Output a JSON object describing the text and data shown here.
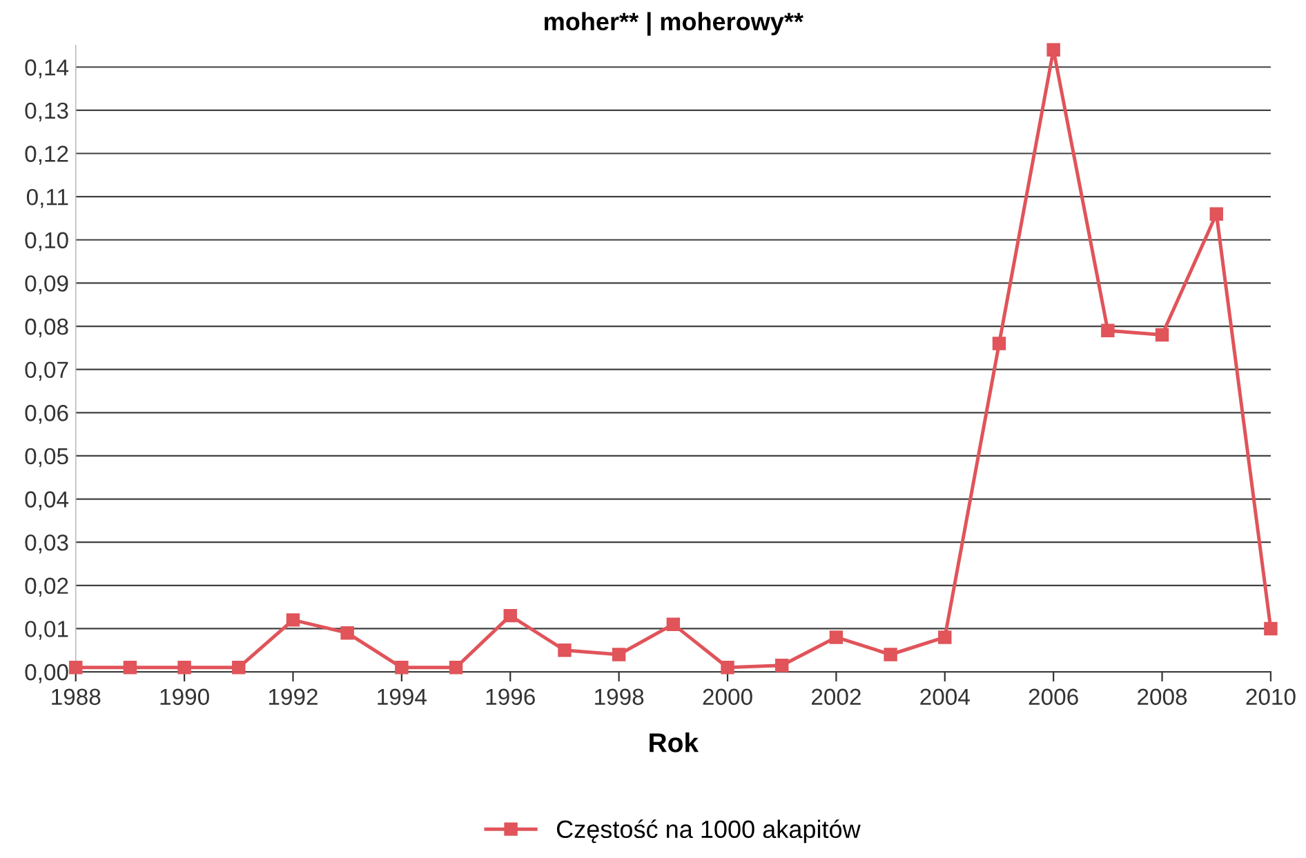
{
  "chart_data": {
    "type": "line",
    "title": "moher** | moherowy**",
    "xlabel": "Rok",
    "x": [
      1988,
      1989,
      1990,
      1991,
      1992,
      1993,
      1994,
      1995,
      1996,
      1997,
      1998,
      1999,
      2000,
      2001,
      2002,
      2003,
      2004,
      2005,
      2006,
      2007,
      2008,
      2009,
      2010
    ],
    "series": [
      {
        "name": "Częstość na 1000 akapitów",
        "color": "#e0545a",
        "values": [
          0.001,
          0.001,
          0.001,
          0.001,
          0.012,
          0.009,
          0.001,
          0.001,
          0.013,
          0.005,
          0.004,
          0.011,
          0.001,
          0.0015,
          0.008,
          0.004,
          0.008,
          0.076,
          0.144,
          0.079,
          0.078,
          0.106,
          0.01
        ]
      }
    ],
    "xlim": [
      1988,
      2010
    ],
    "xticks": [
      1988,
      1990,
      1992,
      1994,
      1996,
      1998,
      2000,
      2002,
      2004,
      2006,
      2008,
      2010
    ],
    "ylim": [
      0,
      0.145
    ],
    "yticks": [
      {
        "value": 0,
        "label": "0,00"
      },
      {
        "value": 0.01,
        "label": "0,01"
      },
      {
        "value": 0.02,
        "label": "0,02"
      },
      {
        "value": 0.03,
        "label": "0,03"
      },
      {
        "value": 0.04,
        "label": "0,04"
      },
      {
        "value": 0.05,
        "label": "0,05"
      },
      {
        "value": 0.06,
        "label": "0,06"
      },
      {
        "value": 0.07,
        "label": "0,07"
      },
      {
        "value": 0.08,
        "label": "0,08"
      },
      {
        "value": 0.09,
        "label": "0,09"
      },
      {
        "value": 0.1,
        "label": "0,10"
      },
      {
        "value": 0.11,
        "label": "0,11"
      },
      {
        "value": 0.12,
        "label": "0,12"
      },
      {
        "value": 0.13,
        "label": "0,13"
      },
      {
        "value": 0.14,
        "label": "0,14"
      }
    ],
    "grid": "y",
    "legend": "bottom",
    "marker": "square",
    "line_style": "solid"
  }
}
